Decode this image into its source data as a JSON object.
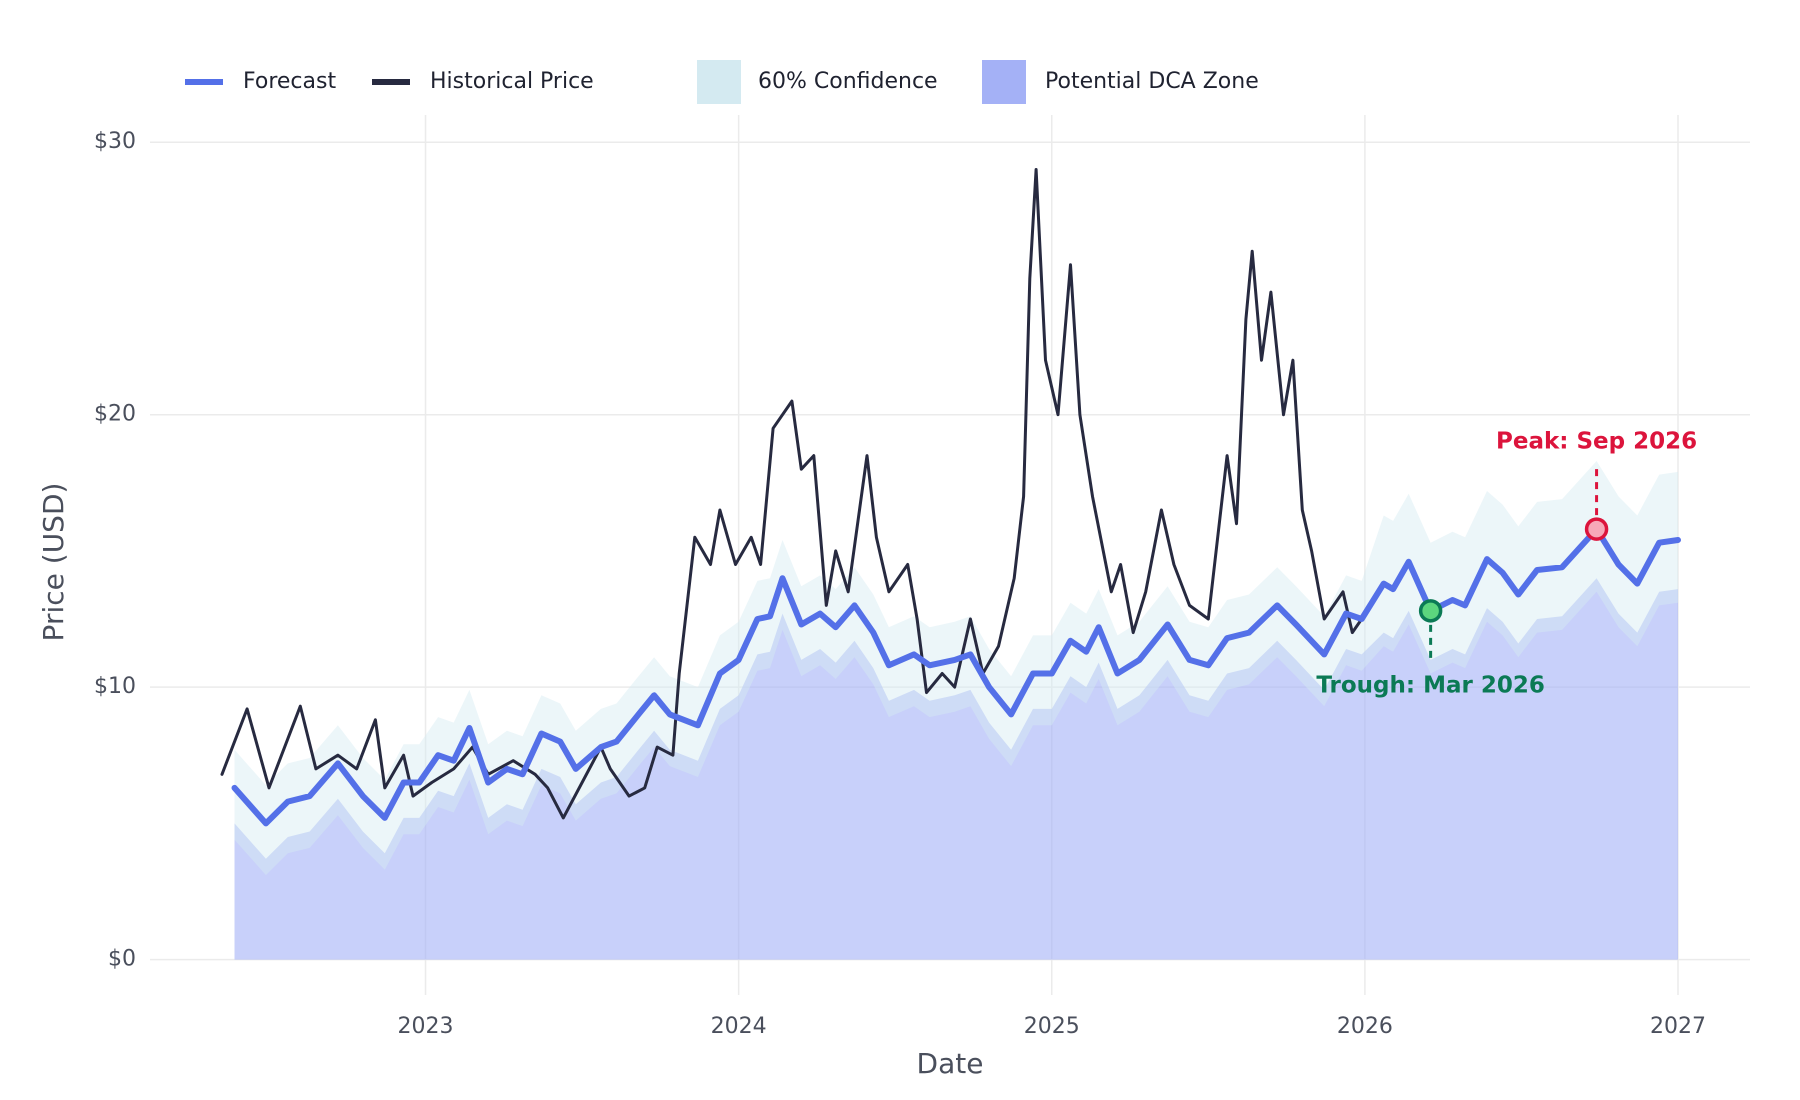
{
  "chart_data": {
    "type": "line",
    "x_label": "Date",
    "y_label": "Price (USD)",
    "xlim": [
      2022.12,
      2027.23
    ],
    "xticks": [
      2023,
      2024,
      2025,
      2026,
      2027
    ],
    "ylim": [
      -1.3,
      31
    ],
    "yticks": [
      {
        "value": 0,
        "label": "$0"
      },
      {
        "value": 10,
        "label": "$10"
      },
      {
        "value": 20,
        "label": "$20"
      },
      {
        "value": 30,
        "label": "$30"
      }
    ],
    "grid": true,
    "legend": "top-left",
    "x": [
      2022.39,
      2022.49,
      2022.56,
      2022.63,
      2022.72,
      2022.8,
      2022.87,
      2022.93,
      2022.98,
      2023.04,
      2023.09,
      2023.14,
      2023.2,
      2023.26,
      2023.31,
      2023.37,
      2023.43,
      2023.48,
      2023.56,
      2023.61,
      2023.68,
      2023.73,
      2023.78,
      2023.87,
      2023.94,
      2024.0,
      2024.06,
      2024.1,
      2024.14,
      2024.2,
      2024.26,
      2024.31,
      2024.37,
      2024.43,
      2024.48,
      2024.56,
      2024.61,
      2024.69,
      2024.74,
      2024.8,
      2024.87,
      2024.94,
      2025.0,
      2025.06,
      2025.11,
      2025.15,
      2025.21,
      2025.28,
      2025.37,
      2025.44,
      2025.5,
      2025.56,
      2025.63,
      2025.72,
      2025.78,
      2025.87,
      2025.94,
      2025.99,
      2026.06,
      2026.09,
      2026.14,
      2026.21,
      2026.28,
      2026.32,
      2026.39,
      2026.44,
      2026.49,
      2026.55,
      2026.63,
      2026.74,
      2026.81,
      2026.87,
      2026.94,
      2027.0
    ],
    "series": [
      {
        "name": "Forecast",
        "type": "line",
        "color": "#5470e8",
        "values": [
          6.3,
          5.0,
          5.8,
          6.0,
          7.2,
          6.0,
          5.2,
          6.5,
          6.5,
          7.5,
          7.3,
          8.5,
          6.5,
          7.0,
          6.8,
          8.3,
          8.0,
          7.0,
          7.8,
          8.0,
          9.0,
          9.7,
          9.0,
          8.6,
          10.5,
          11.0,
          12.5,
          12.6,
          14.0,
          12.3,
          12.7,
          12.2,
          13.0,
          12.0,
          10.8,
          11.2,
          10.8,
          11.0,
          11.2,
          10.0,
          9.0,
          10.5,
          10.5,
          11.7,
          11.3,
          12.2,
          10.5,
          11.0,
          12.3,
          11.0,
          10.8,
          11.8,
          12.0,
          13.0,
          12.3,
          11.2,
          12.7,
          12.5,
          13.8,
          13.6,
          14.6,
          12.8,
          13.2,
          13.0,
          14.7,
          14.2,
          13.4,
          14.3,
          14.4,
          15.8,
          14.5,
          13.8,
          15.3,
          15.4
        ]
      },
      {
        "name": "Historical Price",
        "type": "line",
        "color": "#272a40",
        "x": [
          2022.35,
          2022.43,
          2022.5,
          2022.6,
          2022.65,
          2022.72,
          2022.78,
          2022.84,
          2022.87,
          2022.93,
          2022.96,
          2023.02,
          2023.09,
          2023.15,
          2023.2,
          2023.28,
          2023.35,
          2023.39,
          2023.44,
          2023.5,
          2023.56,
          2023.59,
          2023.65,
          2023.7,
          2023.74,
          2023.79,
          2023.81,
          2023.86,
          2023.91,
          2023.94,
          2023.99,
          2024.04,
          2024.07,
          2024.11,
          2024.17,
          2024.2,
          2024.24,
          2024.28,
          2024.31,
          2024.35,
          2024.41,
          2024.44,
          2024.48,
          2024.54,
          2024.57,
          2024.6,
          2024.65,
          2024.69,
          2024.74,
          2024.78,
          2024.83,
          2024.88,
          2024.91,
          2024.93,
          2024.95,
          2024.98,
          2025.02,
          2025.06,
          2025.09,
          2025.13,
          2025.19,
          2025.22,
          2025.26,
          2025.3,
          2025.35,
          2025.39,
          2025.44,
          2025.5,
          2025.56,
          2025.59,
          2025.62,
          2025.64,
          2025.67,
          2025.7,
          2025.74,
          2025.77,
          2025.8,
          2025.83,
          2025.87,
          2025.93,
          2025.96,
          2025.99
        ],
        "values": [
          6.8,
          9.2,
          6.3,
          9.3,
          7.0,
          7.5,
          7.0,
          8.8,
          6.3,
          7.5,
          6.0,
          6.5,
          7.0,
          7.8,
          6.8,
          7.3,
          6.8,
          6.3,
          5.2,
          6.5,
          7.8,
          7.0,
          6.0,
          6.3,
          7.8,
          7.5,
          10.5,
          15.5,
          14.5,
          16.5,
          14.5,
          15.5,
          14.5,
          19.5,
          20.5,
          18.0,
          18.5,
          13.0,
          15.0,
          13.5,
          18.5,
          15.5,
          13.5,
          14.5,
          12.5,
          9.8,
          10.5,
          10.0,
          12.5,
          10.5,
          11.5,
          14.0,
          17.0,
          25.0,
          29.0,
          22.0,
          20.0,
          25.5,
          20.0,
          17.0,
          13.5,
          14.5,
          12.0,
          13.5,
          16.5,
          14.5,
          13.0,
          12.5,
          18.5,
          16.0,
          23.5,
          26.0,
          22.0,
          24.5,
          20.0,
          22.0,
          16.5,
          15.0,
          12.5,
          13.5,
          12.0,
          12.5
        ]
      },
      {
        "name": "60% Confidence",
        "type": "band",
        "color": "#d4eaf1",
        "upper": [
          7.7,
          6.4,
          7.2,
          7.4,
          8.6,
          7.4,
          6.6,
          7.9,
          7.9,
          8.9,
          8.7,
          9.9,
          7.9,
          8.4,
          8.2,
          9.7,
          9.4,
          8.4,
          9.2,
          9.4,
          10.4,
          11.1,
          10.4,
          10.0,
          11.9,
          12.4,
          13.9,
          14.0,
          15.4,
          13.7,
          14.1,
          13.6,
          14.4,
          13.4,
          12.2,
          12.6,
          12.2,
          12.4,
          12.6,
          11.4,
          10.4,
          11.9,
          11.9,
          13.1,
          12.7,
          13.6,
          11.9,
          12.4,
          13.7,
          12.4,
          12.2,
          13.2,
          13.4,
          14.4,
          13.7,
          12.6,
          14.1,
          13.9,
          16.3,
          16.1,
          17.1,
          15.3,
          15.7,
          15.5,
          17.2,
          16.7,
          15.9,
          16.8,
          16.9,
          18.3,
          17.0,
          16.3,
          17.8,
          17.9
        ],
        "lower": [
          4.4,
          3.1,
          3.9,
          4.1,
          5.3,
          4.1,
          3.3,
          4.6,
          4.6,
          5.6,
          5.4,
          6.6,
          4.6,
          5.1,
          4.9,
          6.4,
          6.1,
          5.1,
          5.9,
          6.1,
          7.1,
          7.8,
          7.1,
          6.7,
          8.6,
          9.1,
          10.6,
          10.7,
          12.1,
          10.4,
          10.8,
          10.3,
          11.1,
          10.1,
          8.9,
          9.3,
          8.9,
          9.1,
          9.3,
          8.1,
          7.1,
          8.6,
          8.6,
          9.8,
          9.4,
          10.3,
          8.6,
          9.1,
          10.4,
          9.1,
          8.9,
          9.9,
          10.1,
          11.1,
          10.4,
          9.3,
          10.8,
          10.6,
          11.5,
          11.3,
          12.3,
          10.5,
          10.9,
          10.7,
          12.4,
          11.9,
          11.1,
          12.0,
          12.1,
          13.5,
          12.2,
          11.5,
          13.0,
          13.1
        ]
      },
      {
        "name": "Potential DCA Zone",
        "type": "area",
        "color": "#a4b1f6",
        "values": [
          5.0,
          3.7,
          4.5,
          4.7,
          5.9,
          4.7,
          3.9,
          5.2,
          5.2,
          6.2,
          6.0,
          7.2,
          5.2,
          5.7,
          5.5,
          7.0,
          6.7,
          5.7,
          6.5,
          6.7,
          7.7,
          8.4,
          7.7,
          7.3,
          9.2,
          9.7,
          11.2,
          11.3,
          12.7,
          11.0,
          11.4,
          10.9,
          11.7,
          10.7,
          9.5,
          9.9,
          9.5,
          9.7,
          9.9,
          8.7,
          7.7,
          9.2,
          9.2,
          10.4,
          10.0,
          10.9,
          9.2,
          9.7,
          11.0,
          9.7,
          9.5,
          10.5,
          10.7,
          11.7,
          11.0,
          9.9,
          11.4,
          11.2,
          12.0,
          11.8,
          12.8,
          11.0,
          11.4,
          11.2,
          12.9,
          12.4,
          11.6,
          12.5,
          12.6,
          14.0,
          12.7,
          12.0,
          13.5,
          13.6
        ]
      }
    ],
    "annotations": [
      {
        "text": "Peak: Sep 2026",
        "x": 2026.74,
        "y": 15.8,
        "color": "#dc143c",
        "marker_color": "#f7a8b8",
        "placement": "above"
      },
      {
        "text": "Trough: Mar 2026",
        "x": 2026.21,
        "y": 12.8,
        "color": "#0b7a55",
        "marker_color": "#5cd67e",
        "placement": "below"
      }
    ]
  }
}
